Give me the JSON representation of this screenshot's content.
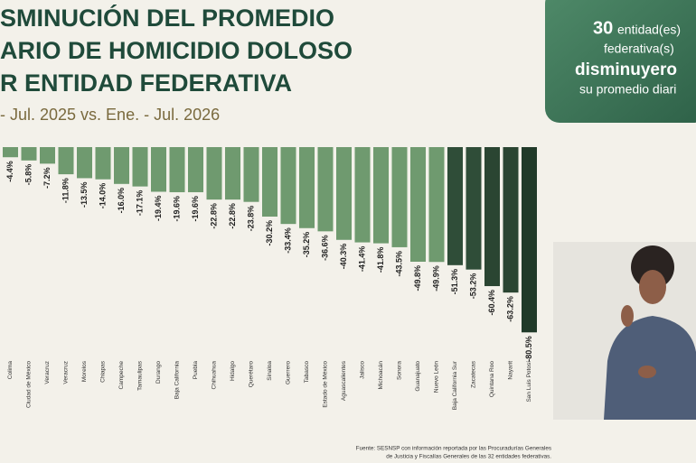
{
  "chart_data": {
    "type": "bar",
    "title": [
      "SMINUCIÓN DEL PROMEDIO",
      "ARIO DE HOMICIDIO DOLOSO",
      "R ENTIDAD FEDERATIVA"
    ],
    "subtitle": "- Jul. 2025 vs. Ene. - Jul. 2026",
    "categories": [
      "Colima",
      "Ciudad de México",
      "Veracruz",
      "Veracruz",
      "Morelos",
      "Chiapas",
      "Campeche",
      "Tamaulipas",
      "Durango",
      "Baja California",
      "Puebla",
      "Chihuahua",
      "Hidalgo",
      "Querétaro",
      "Sinaloa",
      "Guerrero",
      "Tabasco",
      "Estado de México",
      "Aguascalientes",
      "Jalisco",
      "Michoacán",
      "Sonora",
      "Guanajuato",
      "Nuevo León",
      "Baja California Sur",
      "Zacatecas",
      "Quintana Roo",
      "Nayarit",
      "San Luis Potosí"
    ],
    "values": [
      -4.4,
      -5.8,
      -7.2,
      -11.8,
      -13.5,
      -14.0,
      -16.0,
      -17.1,
      -19.4,
      -19.6,
      -19.6,
      -22.8,
      -22.8,
      -23.8,
      -30.2,
      -33.4,
      -35.2,
      -36.6,
      -40.3,
      -41.4,
      -41.8,
      -43.5,
      -49.8,
      -49.9,
      -51.3,
      -53.2,
      -60.4,
      -63.2,
      -80.5
    ],
    "value_labels": [
      "-4.4%",
      "-5.8%",
      "-7.2%",
      "-11.8%",
      "-13.5%",
      "-14.0%",
      "-16.0%",
      "-17.1%",
      "-19.4%",
      "-19.6%",
      "-19.6%",
      "-22.8%",
      "-22.8%",
      "-23.8%",
      "-30.2%",
      "-33.4%",
      "-35.2%",
      "-36.6%",
      "-40.3%",
      "-41.4%",
      "-41.8%",
      "-43.5%",
      "-49.8%",
      "-49.9%",
      "-51.3%",
      "-53.2%",
      "-60.4%",
      "-63.2%",
      "-80.5%"
    ],
    "colors": [
      "#6f9a6f",
      "#6f9a6f",
      "#6f9a6f",
      "#6f9a6f",
      "#6f9a6f",
      "#6f9a6f",
      "#6f9a6f",
      "#6f9a6f",
      "#6f9a6f",
      "#6f9a6f",
      "#6f9a6f",
      "#6f9a6f",
      "#6f9a6f",
      "#6f9a6f",
      "#6f9a6f",
      "#6f9a6f",
      "#6f9a6f",
      "#6f9a6f",
      "#6f9a6f",
      "#6f9a6f",
      "#6f9a6f",
      "#6f9a6f",
      "#6f9a6f",
      "#6f9a6f",
      "#2f4d38",
      "#2f4d38",
      "#2a4532",
      "#2a4532",
      "#203a29"
    ],
    "callout": {
      "number": "30",
      "lines": [
        "entidad(es)",
        "federativa(s)",
        "disminuyero",
        "su promedio diari"
      ]
    },
    "source": [
      "Fuente: SESNSP con información reportada por las Procuradurías Generales",
      "de Justicia y Fiscalías Generales de las 32 entidades federativas."
    ]
  }
}
